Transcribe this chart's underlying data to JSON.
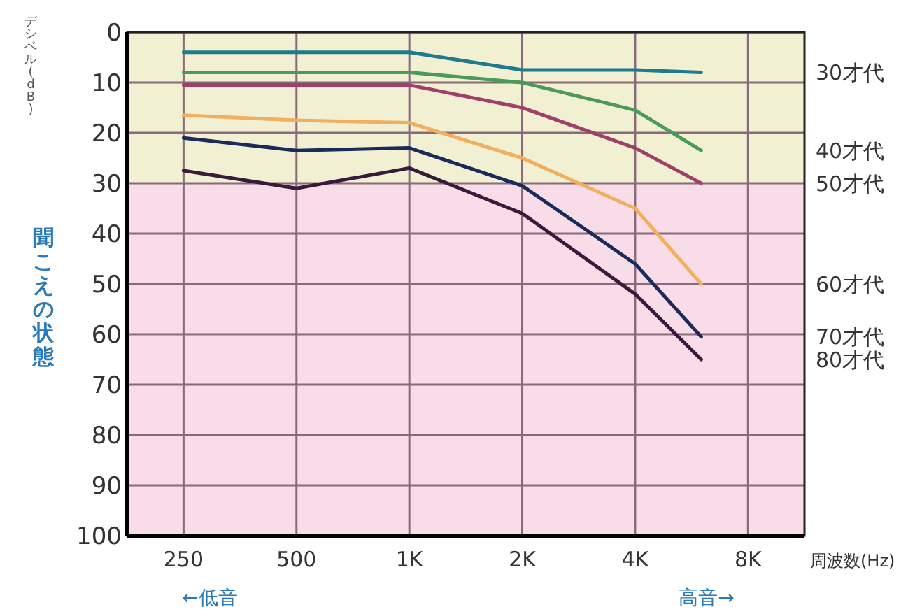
{
  "chart_data": {
    "type": "line",
    "ylabel": "聞こえの状態",
    "xlabel": "周波数(Hz)",
    "annotations": [
      "デシベル(dB)",
      "←低音",
      "高音→"
    ],
    "x": [
      250,
      500,
      1000,
      2000,
      4000,
      6000
    ],
    "log": "x",
    "xlim": [
      177,
      11314
    ],
    "xticks": [
      250,
      500,
      {
        "value": 1000,
        "label": "1K"
      },
      {
        "value": 2000,
        "label": "2K"
      },
      {
        "value": 4000,
        "label": "4K"
      },
      {
        "value": 8000,
        "label": "8K"
      }
    ],
    "ylim": [
      100,
      0
    ],
    "yticks": [
      0,
      10,
      20,
      30,
      40,
      50,
      60,
      70,
      80,
      90,
      100
    ],
    "grid": true,
    "marker": "none",
    "line_style": "solid",
    "bands": [
      {
        "axis": "y",
        "from": 0,
        "to": 30,
        "color": "#f2f0d2"
      },
      {
        "axis": "y",
        "from": 30,
        "to": 100,
        "color": "#f8dde8"
      }
    ],
    "series": [
      {
        "name": "30才代",
        "color": "#1f7a8c",
        "values": [
          4,
          4,
          4,
          7.5,
          7.5,
          8
        ]
      },
      {
        "name": "40才代",
        "color": "#4a9a5a",
        "values": [
          8,
          8,
          8,
          10,
          15.5,
          23.5
        ]
      },
      {
        "name": "50才代",
        "color": "#a0406a",
        "values": [
          10.5,
          10.5,
          10.5,
          15,
          23,
          30
        ]
      },
      {
        "name": "60才代",
        "color": "#f0b060",
        "values": [
          16.5,
          17.5,
          18,
          25,
          35,
          50
        ]
      },
      {
        "name": "70才代",
        "color": "#1a2a5a",
        "values": [
          21,
          23.5,
          23,
          30.5,
          46,
          60.5
        ]
      },
      {
        "name": "80才代",
        "color": "#3a1a3a",
        "values": [
          27.5,
          31,
          27,
          36,
          52,
          65
        ]
      }
    ]
  }
}
